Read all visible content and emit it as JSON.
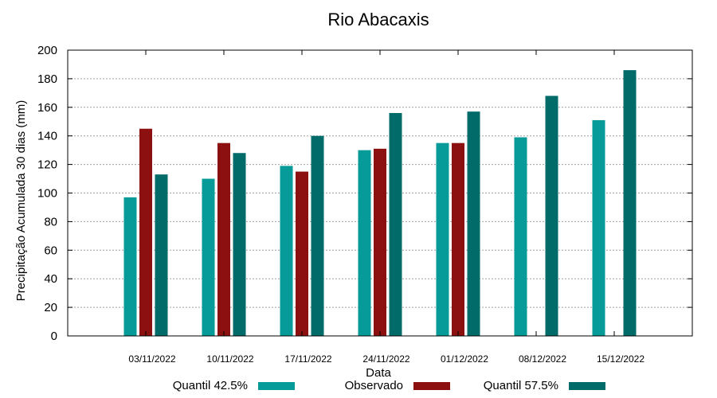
{
  "chart_data": {
    "type": "bar",
    "title": "Rio Abacaxis",
    "xlabel": "Data",
    "ylabel": "Precipitação Acumulada 30 dias (mm)",
    "ylim": [
      0,
      200
    ],
    "yticks": [
      0,
      20,
      40,
      60,
      80,
      100,
      120,
      140,
      160,
      180,
      200
    ],
    "grid": true,
    "legend_position": "bottom",
    "categories": [
      "03/11/2022",
      "10/11/2022",
      "17/11/2022",
      "24/11/2022",
      "01/12/2022",
      "08/12/2022",
      "15/12/2022"
    ],
    "series": [
      {
        "name": "Quantil 42.5%",
        "color": "#069b98",
        "values": [
          97,
          110,
          119,
          130,
          135,
          139,
          151
        ]
      },
      {
        "name": "Observado",
        "color": "#8d1010",
        "values": [
          145,
          135,
          115,
          131,
          135,
          null,
          null
        ]
      },
      {
        "name": "Quantil 57.5%",
        "color": "#006b68",
        "values": [
          113,
          128,
          140,
          156,
          157,
          168,
          186
        ]
      }
    ]
  }
}
